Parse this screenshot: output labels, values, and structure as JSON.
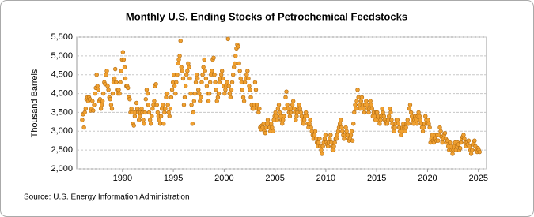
{
  "chart_data": {
    "type": "scatter",
    "title": "Monthly U.S. Ending Stocks of Petrochemical Feedstocks",
    "y_label": "Thousand Barrels",
    "source": "Source: U.S. Energy Information Administration",
    "color": "#f0a030",
    "edge_color": "#b06a10",
    "grid": true,
    "xlim": [
      1985.5,
      2025.8
    ],
    "xticks": [
      1990,
      1995,
      2000,
      2005,
      2010,
      2015,
      2020,
      2025
    ],
    "ylim": [
      2000,
      5500
    ],
    "yticks": [
      {
        "value": 2000,
        "label": "2,000"
      },
      {
        "value": 2500,
        "label": "2,500"
      },
      {
        "value": 3000,
        "label": "3,000"
      },
      {
        "value": 3500,
        "label": "3,500"
      },
      {
        "value": 4000,
        "label": "4,000"
      },
      {
        "value": 4500,
        "label": "4,500"
      },
      {
        "value": 5000,
        "label": "5,000"
      },
      {
        "value": 5500,
        "label": "5,500"
      }
    ],
    "x": [
      1986.04,
      1986.12,
      1986.21,
      1986.29,
      1986.38,
      1986.46,
      1986.54,
      1986.62,
      1986.71,
      1986.79,
      1986.88,
      1986.96,
      1987.04,
      1987.12,
      1987.21,
      1987.29,
      1987.38,
      1987.46,
      1987.54,
      1987.62,
      1987.71,
      1987.79,
      1987.88,
      1987.96,
      1988.04,
      1988.12,
      1988.21,
      1988.29,
      1988.38,
      1988.46,
      1988.54,
      1988.62,
      1988.71,
      1988.79,
      1988.88,
      1988.96,
      1989.04,
      1989.12,
      1989.21,
      1989.29,
      1989.38,
      1989.46,
      1989.54,
      1989.62,
      1989.71,
      1989.79,
      1989.88,
      1989.96,
      1990.04,
      1990.12,
      1990.21,
      1990.29,
      1990.38,
      1990.46,
      1990.54,
      1990.62,
      1990.71,
      1990.79,
      1990.88,
      1990.96,
      1991.04,
      1991.12,
      1991.21,
      1991.29,
      1991.38,
      1991.46,
      1991.54,
      1991.62,
      1991.71,
      1991.79,
      1991.88,
      1991.96,
      1992.04,
      1992.12,
      1992.21,
      1992.29,
      1992.38,
      1992.46,
      1992.54,
      1992.62,
      1992.71,
      1992.79,
      1992.88,
      1992.96,
      1993.04,
      1993.12,
      1993.21,
      1993.29,
      1993.38,
      1993.46,
      1993.54,
      1993.62,
      1993.71,
      1993.79,
      1993.88,
      1993.96,
      1994.04,
      1994.12,
      1994.21,
      1994.29,
      1994.38,
      1994.46,
      1994.54,
      1994.62,
      1994.71,
      1994.79,
      1994.88,
      1994.96,
      1995.04,
      1995.12,
      1995.21,
      1995.29,
      1995.38,
      1995.46,
      1995.54,
      1995.62,
      1995.71,
      1995.79,
      1995.88,
      1995.96,
      1996.04,
      1996.12,
      1996.21,
      1996.29,
      1996.38,
      1996.46,
      1996.54,
      1996.62,
      1996.71,
      1996.79,
      1996.88,
      1996.96,
      1997.04,
      1997.12,
      1997.21,
      1997.29,
      1997.38,
      1997.46,
      1997.54,
      1997.62,
      1997.71,
      1997.79,
      1997.88,
      1997.96,
      1998.04,
      1998.12,
      1998.21,
      1998.29,
      1998.38,
      1998.46,
      1998.54,
      1998.62,
      1998.71,
      1998.79,
      1998.88,
      1998.96,
      1999.04,
      1999.12,
      1999.21,
      1999.29,
      1999.38,
      1999.46,
      1999.54,
      1999.62,
      1999.71,
      1999.79,
      1999.88,
      1999.96,
      2000.04,
      2000.12,
      2000.21,
      2000.29,
      2000.38,
      2000.46,
      2000.54,
      2000.62,
      2000.71,
      2000.79,
      2000.88,
      2000.96,
      2001.04,
      2001.12,
      2001.21,
      2001.29,
      2001.38,
      2001.46,
      2001.54,
      2001.62,
      2001.71,
      2001.79,
      2001.88,
      2001.96,
      2002.04,
      2002.12,
      2002.21,
      2002.29,
      2002.38,
      2002.46,
      2002.54,
      2002.62,
      2002.71,
      2002.79,
      2002.88,
      2002.96,
      2003.04,
      2003.12,
      2003.21,
      2003.29,
      2003.38,
      2003.46,
      2003.54,
      2003.62,
      2003.71,
      2003.79,
      2003.88,
      2003.96,
      2004.04,
      2004.12,
      2004.21,
      2004.29,
      2004.38,
      2004.46,
      2004.54,
      2004.62,
      2004.71,
      2004.79,
      2004.88,
      2004.96,
      2005.04,
      2005.12,
      2005.21,
      2005.29,
      2005.38,
      2005.46,
      2005.54,
      2005.62,
      2005.71,
      2005.79,
      2005.88,
      2005.96,
      2006.04,
      2006.12,
      2006.21,
      2006.29,
      2006.38,
      2006.46,
      2006.54,
      2006.62,
      2006.71,
      2006.79,
      2006.88,
      2006.96,
      2007.04,
      2007.12,
      2007.21,
      2007.29,
      2007.38,
      2007.46,
      2007.54,
      2007.62,
      2007.71,
      2007.79,
      2007.88,
      2007.96,
      2008.04,
      2008.12,
      2008.21,
      2008.29,
      2008.38,
      2008.46,
      2008.54,
      2008.62,
      2008.71,
      2008.79,
      2008.88,
      2008.96,
      2009.04,
      2009.12,
      2009.21,
      2009.29,
      2009.38,
      2009.46,
      2009.54,
      2009.62,
      2009.71,
      2009.79,
      2009.88,
      2009.96,
      2010.04,
      2010.12,
      2010.21,
      2010.29,
      2010.38,
      2010.46,
      2010.54,
      2010.62,
      2010.71,
      2010.79,
      2010.88,
      2010.96,
      2011.04,
      2011.12,
      2011.21,
      2011.29,
      2011.38,
      2011.46,
      2011.54,
      2011.62,
      2011.71,
      2011.79,
      2011.88,
      2011.96,
      2012.04,
      2012.12,
      2012.21,
      2012.29,
      2012.38,
      2012.46,
      2012.54,
      2012.62,
      2012.71,
      2012.79,
      2012.88,
      2012.96,
      2013.04,
      2013.12,
      2013.21,
      2013.29,
      2013.38,
      2013.46,
      2013.54,
      2013.62,
      2013.71,
      2013.79,
      2013.88,
      2013.96,
      2014.04,
      2014.12,
      2014.21,
      2014.29,
      2014.38,
      2014.46,
      2014.54,
      2014.62,
      2014.71,
      2014.79,
      2014.88,
      2014.96,
      2015.04,
      2015.12,
      2015.21,
      2015.29,
      2015.38,
      2015.46,
      2015.54,
      2015.62,
      2015.71,
      2015.79,
      2015.88,
      2015.96,
      2016.04,
      2016.12,
      2016.21,
      2016.29,
      2016.38,
      2016.46,
      2016.54,
      2016.62,
      2016.71,
      2016.79,
      2016.88,
      2016.96,
      2017.04,
      2017.12,
      2017.21,
      2017.29,
      2017.38,
      2017.46,
      2017.54,
      2017.62,
      2017.71,
      2017.79,
      2017.88,
      2017.96,
      2018.04,
      2018.12,
      2018.21,
      2018.29,
      2018.38,
      2018.46,
      2018.54,
      2018.62,
      2018.71,
      2018.79,
      2018.88,
      2018.96,
      2019.04,
      2019.12,
      2019.21,
      2019.29,
      2019.38,
      2019.46,
      2019.54,
      2019.62,
      2019.71,
      2019.79,
      2019.88,
      2019.96,
      2020.04,
      2020.12,
      2020.21,
      2020.29,
      2020.38,
      2020.46,
      2020.54,
      2020.62,
      2020.71,
      2020.79,
      2020.88,
      2020.96,
      2021.04,
      2021.12,
      2021.21,
      2021.29,
      2021.38,
      2021.46,
      2021.54,
      2021.62,
      2021.71,
      2021.79,
      2021.88,
      2021.96,
      2022.04,
      2022.12,
      2022.21,
      2022.29,
      2022.38,
      2022.46,
      2022.54,
      2022.62,
      2022.71,
      2022.79,
      2022.88,
      2022.96,
      2023.04,
      2023.12,
      2023.21,
      2023.29,
      2023.38,
      2023.46,
      2023.54,
      2023.62,
      2023.71,
      2023.79,
      2023.88,
      2023.96,
      2024.04,
      2024.12,
      2024.21,
      2024.29,
      2024.38,
      2024.46,
      2024.54,
      2024.62,
      2024.71,
      2024.79,
      2024.88,
      2024.96,
      2025.04,
      2025.12
    ],
    "values": [
      3300,
      3450,
      3100,
      3500,
      3600,
      3850,
      3900,
      3800,
      3900,
      3850,
      3550,
      3600,
      3800,
      3550,
      3700,
      4000,
      4150,
      4500,
      4200,
      4100,
      3800,
      3850,
      3600,
      3700,
      3800,
      4000,
      4300,
      4250,
      4500,
      4600,
      4200,
      4100,
      3900,
      3850,
      3700,
      3600,
      4000,
      4300,
      4400,
      4650,
      4300,
      4100,
      4000,
      4100,
      4000,
      4300,
      4600,
      4900,
      5100,
      4900,
      4700,
      4400,
      4200,
      4200,
      4150,
      3900,
      3850,
      3500,
      3600,
      3500,
      3200,
      3150,
      3400,
      3500,
      3750,
      3600,
      3500,
      3300,
      3400,
      3500,
      3600,
      3500,
      3300,
      3200,
      3500,
      3850,
      4100,
      4000,
      3700,
      3500,
      3300,
      3200,
      3400,
      3600,
      3700,
      3800,
      4200,
      4250,
      3700,
      3500,
      3400,
      3300,
      3200,
      3400,
      3600,
      3700,
      3200,
      3500,
      3600,
      3900,
      4000,
      3700,
      3500,
      3400,
      3600,
      3900,
      4100,
      4300,
      4500,
      4200,
      4000,
      4300,
      4500,
      4800,
      4900,
      5000,
      5400,
      4700,
      4600,
      4400,
      3700,
      3900,
      4200,
      4500,
      4600,
      4800,
      4700,
      4400,
      4000,
      3700,
      3200,
      3500,
      3800,
      4000,
      4300,
      4500,
      4400,
      4100,
      4000,
      3800,
      3900,
      4300,
      4500,
      4700,
      4900,
      4600,
      4400,
      4200,
      4000,
      3800,
      4000,
      4300,
      4500,
      4600,
      4900,
      4950,
      4500,
      4300,
      4100,
      3800,
      3900,
      4000,
      4300,
      4400,
      4500,
      4600,
      4400,
      4200,
      4000,
      4100,
      4200,
      4300,
      5450,
      4200,
      4000,
      3900,
      4100,
      4300,
      4500,
      4700,
      4800,
      5000,
      5200,
      5300,
      5250,
      4800,
      4600,
      4400,
      4300,
      4100,
      3900,
      3800,
      4300,
      4400,
      4500,
      4600,
      4400,
      4200,
      4100,
      3900,
      3700,
      3600,
      3600,
      3700,
      4300,
      4100,
      3700,
      3600,
      3500,
      3600,
      3100,
      3050,
      3150,
      3100,
      3200,
      3000,
      2950,
      3100,
      3200,
      3300,
      3200,
      3100,
      3000,
      3200,
      3100,
      3000,
      3300,
      3400,
      3500,
      3400,
      3300,
      3600,
      3700,
      3500,
      3400,
      3300,
      3200,
      3300,
      3400,
      3600,
      3900,
      4050,
      3700,
      3600,
      3500,
      3400,
      3500,
      3600,
      3700,
      3800,
      3600,
      3500,
      3300,
      3400,
      3500,
      3600,
      3700,
      3600,
      3500,
      3400,
      3300,
      3200,
      3300,
      3400,
      3500,
      3400,
      3200,
      3100,
      3200,
      3300,
      3100,
      3000,
      2900,
      2800,
      2900,
      3000,
      2800,
      2700,
      2600,
      2700,
      2800,
      2600,
      2500,
      2400,
      2600,
      2700,
      2800,
      2900,
      2700,
      2650,
      2600,
      2700,
      2800,
      2900,
      2700,
      2600,
      2500,
      2600,
      2700,
      2800,
      2800,
      2900,
      3000,
      3100,
      3200,
      3300,
      3100,
      3000,
      2900,
      2800,
      2900,
      3100,
      3000,
      2900,
      2800,
      2750,
      2800,
      2900,
      3000,
      2750,
      3200,
      3500,
      3700,
      3600,
      3800,
      4100,
      3900,
      3700,
      3600,
      3800,
      3900,
      3700,
      3600,
      3500,
      3700,
      3800,
      3700,
      3600,
      3500,
      3600,
      3800,
      3700,
      3600,
      3400,
      3500,
      3400,
      3300,
      3500,
      3500,
      3400,
      3300,
      3200,
      3300,
      3400,
      3600,
      3500,
      3400,
      3300,
      3200,
      3250,
      3200,
      3300,
      3400,
      3600,
      3500,
      3300,
      3200,
      3100,
      3000,
      3100,
      3200,
      3300,
      3300,
      3200,
      3100,
      3000,
      2900,
      3000,
      3100,
      3200,
      3100,
      3000,
      3100,
      3200,
      3300,
      3200,
      3600,
      3700,
      3500,
      3400,
      3300,
      3200,
      3300,
      3400,
      3300,
      3200,
      3400,
      3500,
      3400,
      3300,
      3200,
      3100,
      3000,
      3100,
      3200,
      3400,
      3300,
      3200,
      3300,
      3200,
      3100,
      2700,
      2800,
      2900,
      2750,
      2700,
      2800,
      2900,
      2750,
      2900,
      2750,
      2900,
      3100,
      3000,
      2850,
      2700,
      2800,
      2900,
      2950,
      2800,
      2700,
      2750,
      2600,
      2500,
      2700,
      2600,
      2500,
      2400,
      2500,
      2600,
      2700,
      2500,
      2600,
      2700,
      2650,
      2500,
      2550,
      2700,
      2800,
      2850,
      2900,
      2800,
      2700,
      2600,
      2700,
      2650,
      2750,
      2600,
      2500,
      2400,
      2500,
      2650,
      2700,
      2750,
      2600,
      2500,
      2450,
      2550,
      2500,
      2450
    ]
  }
}
